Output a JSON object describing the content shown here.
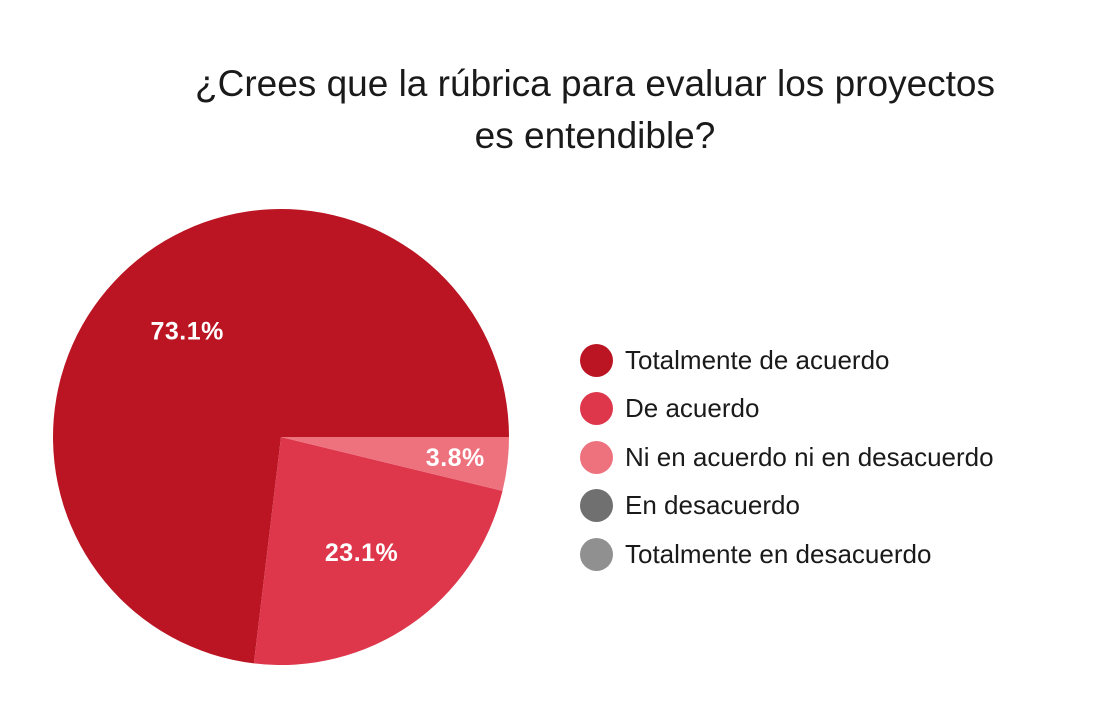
{
  "chart_data": {
    "type": "pie",
    "title": [
      "¿Crees que la rúbrica para evaluar los proyectos",
      "es entendible?"
    ],
    "slices": [
      {
        "label": "Totalmente de acuerdo",
        "value": 73.1,
        "display": "73.1%",
        "color": "#bb1523"
      },
      {
        "label": "De acuerdo",
        "value": 23.1,
        "display": "23.1%",
        "color": "#de364b"
      },
      {
        "label": "Ni en acuerdo ni en desacuerdo",
        "value": 3.8,
        "display": "3.8%",
        "color": "#ee727e"
      },
      {
        "label": "En desacuerdo",
        "value": 0,
        "display": "",
        "color": "#707070"
      },
      {
        "label": "Totalmente en desacuerdo",
        "value": 0,
        "display": "",
        "color": "#909090"
      }
    ],
    "legend_position": "right"
  }
}
